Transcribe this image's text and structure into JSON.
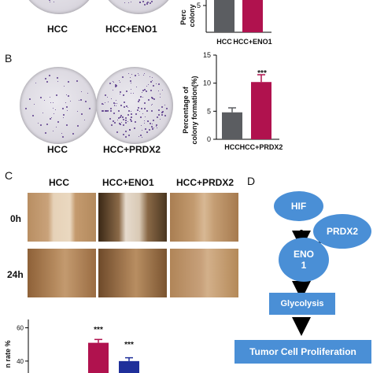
{
  "panelA": {
    "dish_labels": [
      "HCC",
      "HCC+ENO1"
    ],
    "ylabel": "Percentage of colony formation(%)",
    "ylabel_visible": [
      "Perc",
      "colony"
    ],
    "y_tick_visible": "5",
    "x_labels": [
      "HCC",
      "HCC+ENO1"
    ]
  },
  "panelB": {
    "letter": "B",
    "dish_labels": [
      "HCC",
      "HCC+PRDX2"
    ],
    "ylabel_line1": "Percentage of",
    "ylabel_line2": "colony formation(%)",
    "significance": "***",
    "x_labels": [
      "HCC",
      "HCC+PRDX2"
    ]
  },
  "panelC": {
    "letter": "C",
    "column_labels": [
      "HCC",
      "HCC+ENO1",
      "HCC+PRDX2"
    ],
    "row_labels": [
      "0h",
      "24h"
    ],
    "ylabel_visible": "n rate %",
    "significance": [
      "***",
      "***"
    ]
  },
  "panelD": {
    "letter": "D",
    "nodes": {
      "hif": "HIF",
      "prdx2": "PRDX2",
      "eno1_line1": "ENO",
      "eno1_line2": "1",
      "glycolysis": "Glycolysis",
      "tumor": "Tumor Cell Proliferation"
    }
  },
  "colors": {
    "control_bar": "#5b5d61",
    "eno1_bar": "#b0124e",
    "prdx2_bar": "#b0124e",
    "c_bar2": "#1f2f9a",
    "node_fill": "#4a8fd6"
  },
  "chart_data": [
    {
      "type": "bar",
      "categories": [
        "HCC",
        "HCC+PRDX2"
      ],
      "values": [
        4.8,
        10.2
      ],
      "errors": [
        0.8,
        1.3
      ],
      "ylabel": "Percentage of colony formation(%)",
      "yticks": [
        0,
        5,
        10,
        15
      ],
      "ylim": [
        0,
        15
      ],
      "annotations": [
        "***"
      ]
    },
    {
      "type": "bar",
      "categories": [
        "HCC",
        "HCC+ENO1"
      ],
      "values": [
        5.5,
        5.5
      ],
      "yticks": [
        5
      ],
      "ylim": [
        0,
        8
      ]
    },
    {
      "type": "bar",
      "categories": [
        "HCC",
        "HCC+ENO1",
        "HCC+PRDX2"
      ],
      "values": [
        null,
        51,
        40
      ],
      "yticks": [
        40,
        60
      ],
      "ylim": [
        30,
        65
      ],
      "annotations": [
        "***",
        "***"
      ]
    }
  ]
}
